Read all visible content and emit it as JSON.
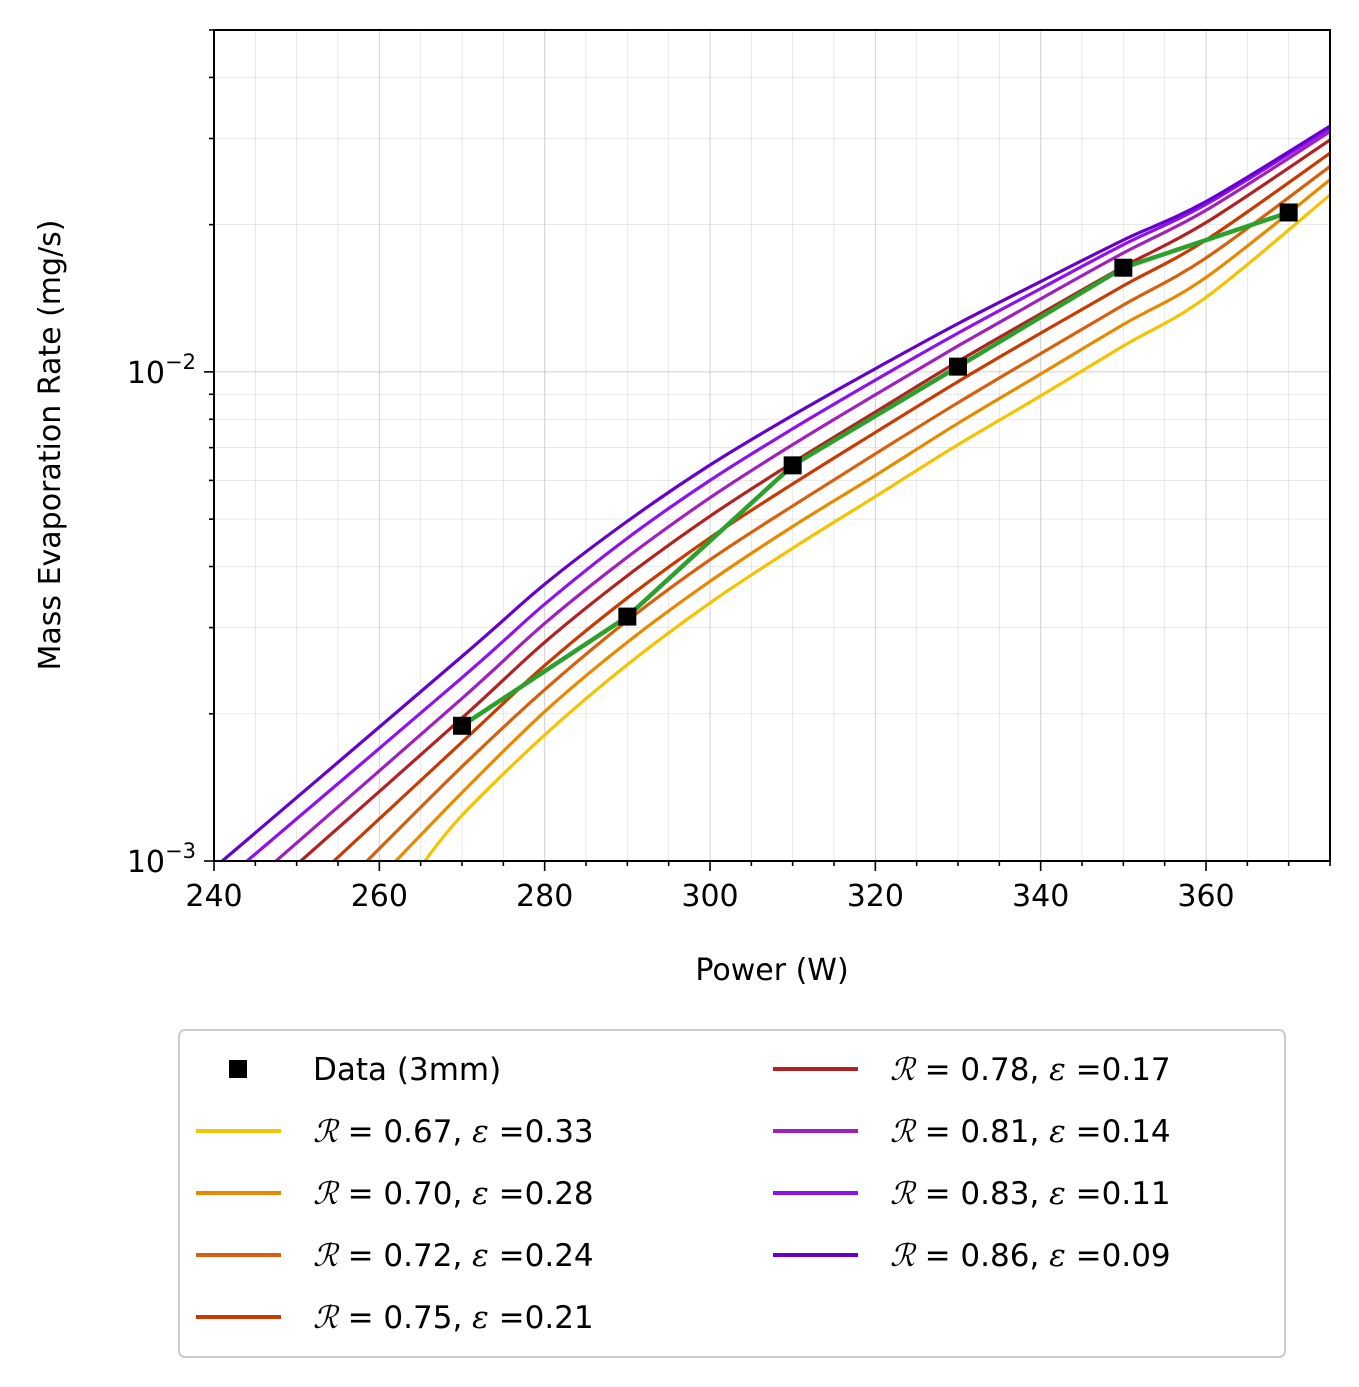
{
  "chart_data": {
    "type": "line",
    "title": "",
    "xlabel": "Power (W)",
    "ylabel": "Mass Evaporation Rate (mg/s)",
    "xlim": [
      240,
      375
    ],
    "ylim": [
      0.001,
      0.05
    ],
    "yscale": "log",
    "grid": true,
    "legend_position": "below",
    "x_ticks": [
      240,
      260,
      280,
      300,
      320,
      340,
      360
    ],
    "x_tick_labels": [
      "240",
      "260",
      "280",
      "300",
      "320",
      "340",
      "360"
    ],
    "y_ticks": [
      0.001,
      0.01
    ],
    "y_tick_labels": [
      {
        "base": "10",
        "exp": "−3"
      },
      {
        "base": "10",
        "exp": "−2"
      }
    ],
    "data_series": {
      "name": "Data (3mm)",
      "marker": "square",
      "marker_color": "#000000",
      "line_color": "#2ca02c",
      "x": [
        270,
        290,
        310,
        330,
        350,
        370
      ],
      "y": [
        0.00189,
        0.00316,
        0.00644,
        0.01025,
        0.01633,
        0.02118
      ]
    },
    "model_series": [
      {
        "R": "0.67",
        "eps": "0.33",
        "color": "#f5c400",
        "x": [
          265.5,
          270,
          280,
          290,
          300,
          310,
          320,
          330,
          340,
          350,
          360,
          375
        ],
        "y": [
          0.001,
          0.00124,
          0.00181,
          0.00252,
          0.00337,
          0.00436,
          0.00556,
          0.0071,
          0.00893,
          0.0113,
          0.0142,
          0.023
        ]
      },
      {
        "R": "0.70",
        "eps": "0.28",
        "color": "#e88a00",
        "x": [
          262,
          270,
          280,
          290,
          300,
          310,
          320,
          330,
          340,
          350,
          360,
          375
        ],
        "y": [
          0.001,
          0.00138,
          0.00202,
          0.0028,
          0.00373,
          0.00483,
          0.00614,
          0.00785,
          0.0099,
          0.0125,
          0.0156,
          0.0247
        ]
      },
      {
        "R": "0.72",
        "eps": "0.24",
        "color": "#d8600a",
        "x": [
          258.5,
          270,
          280,
          290,
          300,
          310,
          320,
          330,
          340,
          350,
          360,
          375
        ],
        "y": [
          0.001,
          0.00156,
          0.00224,
          0.0031,
          0.00413,
          0.00532,
          0.0068,
          0.00865,
          0.0109,
          0.0137,
          0.0171,
          0.0263
        ]
      },
      {
        "R": "0.75",
        "eps": "0.21",
        "color": "#c83a00",
        "x": [
          254.5,
          270,
          280,
          290,
          300,
          310,
          320,
          330,
          340,
          350,
          360,
          375
        ],
        "y": [
          0.001,
          0.00175,
          0.00251,
          0.00345,
          0.00458,
          0.0059,
          0.00752,
          0.00955,
          0.012,
          0.015,
          0.0186,
          0.028
        ]
      },
      {
        "R": "0.78",
        "eps": "0.17",
        "color": "#b22222",
        "x": [
          250.5,
          270,
          280,
          290,
          300,
          310,
          320,
          330,
          340,
          350,
          360,
          375
        ],
        "y": [
          0.001,
          0.00196,
          0.0028,
          0.00383,
          0.00507,
          0.00652,
          0.00828,
          0.0105,
          0.01315,
          0.0164,
          0.0202,
          0.0298
        ]
      },
      {
        "R": "0.81",
        "eps": "0.14",
        "color": "#a21fbf",
        "x": [
          247.5,
          270,
          280,
          290,
          300,
          310,
          320,
          330,
          340,
          350,
          360,
          375
        ],
        "y": [
          0.001,
          0.00215,
          0.00306,
          0.00418,
          0.00553,
          0.0071,
          0.00898,
          0.0113,
          0.0141,
          0.0175,
          0.0214,
          0.031
        ]
      },
      {
        "R": "0.83",
        "eps": "0.11",
        "color": "#8f10f0",
        "x": [
          244,
          270,
          280,
          290,
          300,
          310,
          320,
          330,
          340,
          350,
          360,
          375
        ],
        "y": [
          0.001,
          0.00237,
          0.00335,
          0.00457,
          0.006,
          0.00765,
          0.00962,
          0.012,
          0.0148,
          0.0182,
          0.022,
          0.0315
        ]
      },
      {
        "R": "0.86",
        "eps": "0.09",
        "color": "#6600cc",
        "x": [
          241,
          270,
          280,
          290,
          300,
          310,
          320,
          330,
          340,
          350,
          360,
          375
        ],
        "y": [
          0.001,
          0.00262,
          0.00368,
          0.00495,
          0.00645,
          0.00815,
          0.01015,
          0.01255,
          0.0153,
          0.0186,
          0.0223,
          0.0318
        ]
      }
    ]
  }
}
